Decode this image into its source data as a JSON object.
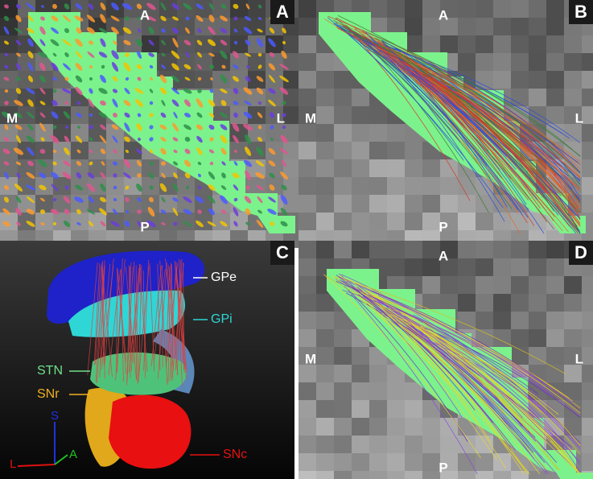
{
  "panels": [
    {
      "label": "A",
      "orientation": {
        "top": "A",
        "left": "M",
        "right": "L",
        "bottom": "P"
      }
    },
    {
      "label": "B",
      "orientation": {
        "top": "A",
        "left": "M",
        "right": "L",
        "bottom": "P"
      }
    },
    {
      "label": "C",
      "structures": [
        "GPe",
        "GPi",
        "STN",
        "SNr",
        "SNc"
      ],
      "axes": {
        "superior": "S",
        "lateral": "L",
        "anterior": "A"
      }
    },
    {
      "label": "D",
      "orientation": {
        "top": "A",
        "left": "M",
        "right": "L",
        "bottom": "P"
      }
    }
  ]
}
